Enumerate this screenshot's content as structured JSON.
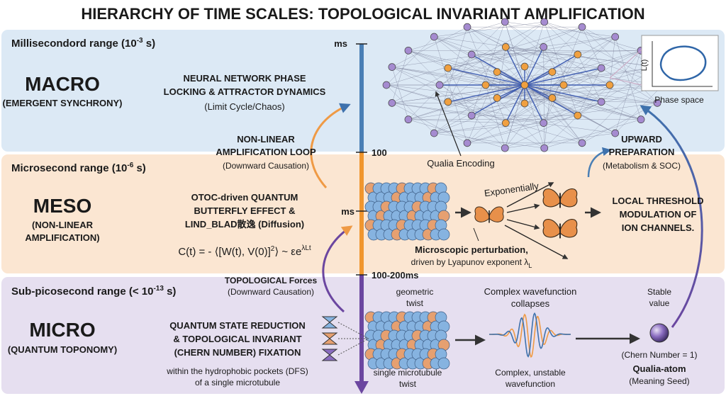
{
  "title": "HIERARCHY OF TIME SCALES: TOPOLOGICAL INVARIANT AMPLIFICATION",
  "axis": {
    "top": "ms",
    "tick_1": "100",
    "mid": "ms",
    "tick_2": "100-200ms"
  },
  "macro": {
    "range": {
      "prefix": "Millisecondord range (10",
      "exponent": "-3",
      "suffix": " s)"
    },
    "name": "MACRO",
    "subtitle": "(EMERGENT SYNCHRONY)",
    "process": [
      "NEURAL NETWORK PHASE",
      "LOCKING & ATTRACTOR DYNAMICS"
    ],
    "process_note": "(Limit Cycle/Chaos)",
    "phase_axis": "L(t)",
    "phase_space": "Phase space",
    "qualia_encoding": "Qualia Encoding"
  },
  "meso": {
    "range": {
      "prefix": "Microsecond range (10",
      "exponent": "-6",
      "suffix": " s)"
    },
    "name": "MESO",
    "subtitle": [
      "(NON-LINEAR",
      "AMPLIFICATION)"
    ],
    "process": [
      "OTOC-driven QUANTUM",
      "BUTTERFLY EFFECT &",
      "LIND_BLAD散逸 (Diffusion)"
    ],
    "formula": {
      "main": "C(t) = - ⟨[W(t), V(0)]",
      "square": "2",
      "rest": "⟩ ~ εe",
      "exponent": "λLt"
    },
    "loop": [
      "NON-LINEAR",
      "AMPLIFICATION LOOP"
    ],
    "loop_note": "(Downward Causation)",
    "upward": [
      "UPWARD",
      "PREPARATION"
    ],
    "upward_note": "(Metabolism & SOC)",
    "exponentially": "Exponentially",
    "perturbation": "Microscopic perturbation,",
    "lyapunov": {
      "text": "driven by Lyapunov exponent λ",
      "sub": "L"
    },
    "outcome": [
      "LOCAL THRESHOLD",
      "MODULATION OF",
      "ION CHANNELS."
    ]
  },
  "micro": {
    "range": {
      "prefix": "Sub-picosecond range (< 10",
      "exponent": "-13",
      "suffix": " s)"
    },
    "name": "MICRO",
    "subtitle": "(QUANTUM TOPONOMY)",
    "process": [
      "QUANTUM STATE REDUCTION",
      "& TOPOLOGICAL INVARIANT",
      "(CHERN NUMBER) FIXATION"
    ],
    "location": [
      "within the hydrophobic pockets (DFS)",
      "of a single microtubule"
    ],
    "forces": "TOPOLOGICAL Forces",
    "forces_note": "(Downward Causation)",
    "twist_top": [
      "geometric",
      "twist"
    ],
    "twist_bottom": [
      "single microtubule",
      "twist"
    ],
    "wave_top": [
      "Complex wavefunction",
      "collapses"
    ],
    "wave_bottom": [
      "Complex, unstable",
      "wavefunction"
    ],
    "stable": [
      "Stable",
      "value"
    ],
    "chern": "(Chern Number = 1)",
    "atom": "Qualia-atom",
    "seed": "(Meaning Seed)"
  }
}
